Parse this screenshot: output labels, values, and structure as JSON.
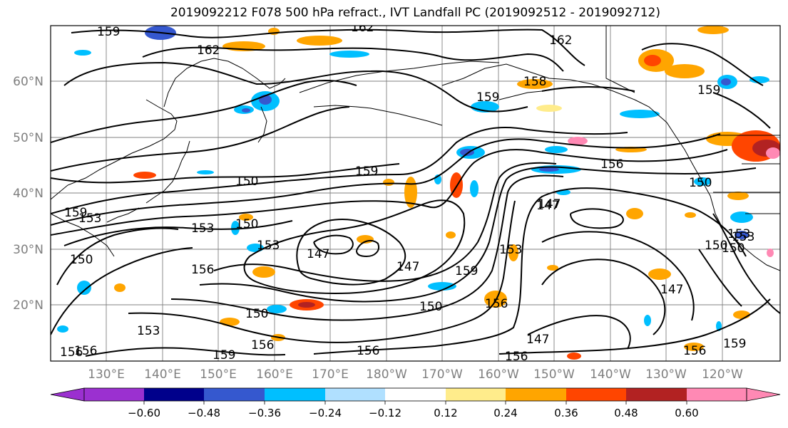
{
  "title": "2019092212 F078 500 hPa refract., IVT Landfall PC (2019092512 - 2019092712)",
  "map": {
    "lat_labels": [
      "60°N",
      "50°N",
      "40°N",
      "30°N",
      "20°N"
    ],
    "lon_labels": [
      "130°E",
      "140°E",
      "150°E",
      "160°E",
      "170°E",
      "180°W",
      "170°W",
      "160°W",
      "150°W",
      "140°W",
      "130°W",
      "120°W"
    ],
    "contour_labels": [
      "159",
      "162",
      "162",
      "162",
      "159",
      "159",
      "158",
      "159",
      "159",
      "150",
      "156",
      "150",
      "153",
      "153",
      "150",
      "153",
      "156",
      "147",
      "147",
      "159",
      "150",
      "153",
      "147",
      "150",
      "153",
      "150",
      "147",
      "153",
      "150",
      "156",
      "156",
      "156",
      "159",
      "156",
      "147",
      "156",
      "159",
      "156",
      "156",
      "147",
      "150",
      "153"
    ]
  },
  "colorbar": {
    "colors": [
      "#9b30d0",
      "#00008b",
      "#3558cf",
      "#00bfff",
      "#b0e0ff",
      "#ffffff",
      "#ffec8b",
      "#ffa500",
      "#ff4500",
      "#b22222",
      "#ff89b4"
    ],
    "tick_labels": [
      "−0.60",
      "−0.48",
      "−0.36",
      "−0.24",
      "−0.12",
      "0.12",
      "0.24",
      "0.36",
      "0.48",
      "0.60"
    ]
  }
}
